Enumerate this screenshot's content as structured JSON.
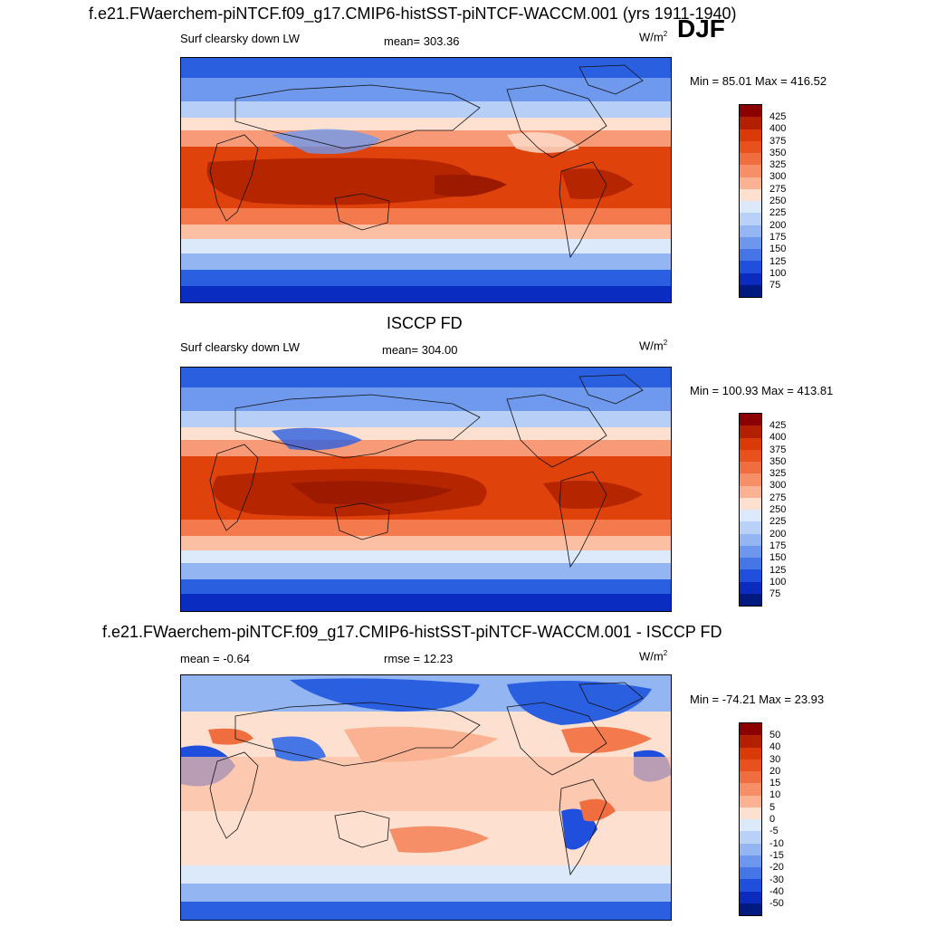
{
  "header": {
    "model_title": "f.e21.FWaerchem-piNTCF.f09_g17.CMIP6-histSST-piNTCF-WACCM.001 (yrs 1911-1940)",
    "season": "DJF"
  },
  "panels": [
    {
      "title": "",
      "left_label": "Surf clearsky down LW",
      "center_label": "mean= 303.36",
      "units": "W/m",
      "units_sup": "2",
      "minmax": "Min =  85.01 Max = 416.52",
      "colorbar_labels": [
        "425",
        "400",
        "375",
        "350",
        "325",
        "300",
        "275",
        "250",
        "225",
        "200",
        "175",
        "150",
        "125",
        "100",
        "75"
      ],
      "colorbar_colors": [
        "#8b0000",
        "#b32000",
        "#d93a08",
        "#e8501e",
        "#f06d40",
        "#f68e68",
        "#fab293",
        "#fde0cf",
        "#dce9fb",
        "#b9d1f7",
        "#93b6f2",
        "#6d97ec",
        "#4676e6",
        "#1f4fdc",
        "#0a2bbd",
        "#001a80"
      ]
    },
    {
      "title": "ISCCP FD",
      "left_label": "Surf clearsky down LW",
      "center_label": "mean= 304.00",
      "units": "W/m",
      "units_sup": "2",
      "minmax": "Min = 100.93 Max = 413.81",
      "colorbar_labels": [
        "425",
        "400",
        "375",
        "350",
        "325",
        "300",
        "275",
        "250",
        "225",
        "200",
        "175",
        "150",
        "125",
        "100",
        "75"
      ],
      "colorbar_colors": [
        "#8b0000",
        "#b32000",
        "#d93a08",
        "#e8501e",
        "#f06d40",
        "#f68e68",
        "#fab293",
        "#fde0cf",
        "#dce9fb",
        "#b9d1f7",
        "#93b6f2",
        "#6d97ec",
        "#4676e6",
        "#1f4fdc",
        "#0a2bbd",
        "#001a80"
      ]
    },
    {
      "title": "f.e21.FWaerchem-piNTCF.f09_g17.CMIP6-histSST-piNTCF-WACCM.001 - ISCCP FD",
      "left_label": "mean =  -0.64",
      "center_label": "rmse =  12.23",
      "units": "W/m",
      "units_sup": "2",
      "minmax": "Min = -74.21 Max =  23.93",
      "colorbar_labels": [
        "50",
        "40",
        "30",
        "20",
        "15",
        "10",
        "5",
        "0",
        "-5",
        "-10",
        "-15",
        "-20",
        "-30",
        "-40",
        "-50"
      ],
      "colorbar_colors": [
        "#8b0000",
        "#b32000",
        "#d93a08",
        "#e8501e",
        "#f06d40",
        "#f68e68",
        "#fab293",
        "#fde0cf",
        "#dce9fb",
        "#b9d1f7",
        "#93b6f2",
        "#6d97ec",
        "#4676e6",
        "#1f4fdc",
        "#0a2bbd",
        "#001a80"
      ]
    }
  ]
}
